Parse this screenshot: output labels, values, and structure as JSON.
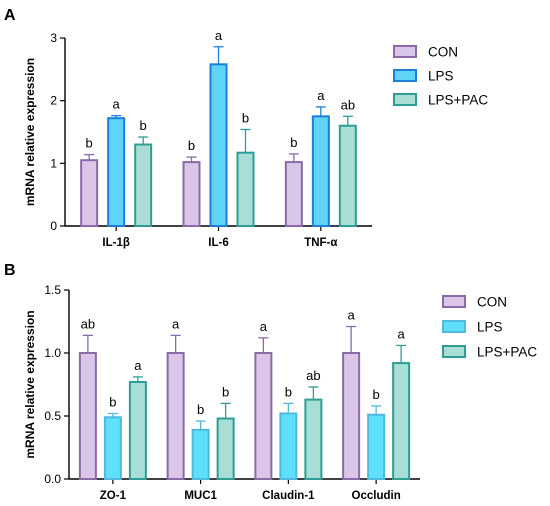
{
  "figure": {
    "panel_labels": [
      "A",
      "B"
    ]
  },
  "chart_data": [
    {
      "type": "bar",
      "panel": "A",
      "ylabel": "mRNA relative  expression",
      "ylim": [
        0,
        3
      ],
      "yticks": [
        0,
        1,
        2,
        3
      ],
      "categories": [
        "IL-1β",
        "IL-6",
        "TNF-α"
      ],
      "series": [
        {
          "name": "CON",
          "values": [
            1.05,
            1.02,
            1.02
          ],
          "errors": [
            0.09,
            0.08,
            0.13
          ],
          "labels": [
            "b",
            "b",
            "b"
          ]
        },
        {
          "name": "LPS",
          "values": [
            1.72,
            2.58,
            1.75
          ],
          "errors": [
            0.04,
            0.28,
            0.15
          ],
          "labels": [
            "a",
            "a",
            "a"
          ]
        },
        {
          "name": "LPS+PAC",
          "values": [
            1.3,
            1.17,
            1.6
          ],
          "errors": [
            0.12,
            0.37,
            0.15
          ],
          "labels": [
            "b",
            "b",
            "ab"
          ]
        }
      ],
      "colors": {
        "CON": {
          "fill": "#d9c6e8",
          "stroke": "#8b6aa8"
        },
        "LPS": {
          "fill": "#5fd4f5",
          "stroke": "#1d7fd9"
        },
        "LPS+PAC": {
          "fill": "#a8ded6",
          "stroke": "#2e9e94"
        }
      },
      "legend_position": "right"
    },
    {
      "type": "bar",
      "panel": "B",
      "ylabel": "mRNA relative expression",
      "ylim": [
        0,
        1.5
      ],
      "yticks": [
        "0.0",
        "0.5",
        "1.0",
        "1.5"
      ],
      "categories": [
        "ZO-1",
        "MUC1",
        "Claudin-1",
        "Occludin"
      ],
      "series": [
        {
          "name": "CON",
          "values": [
            1.0,
            1.0,
            1.0,
            1.0
          ],
          "errors": [
            0.14,
            0.14,
            0.12,
            0.21
          ],
          "labels": [
            "ab",
            "a",
            "a",
            "a"
          ]
        },
        {
          "name": "LPS",
          "values": [
            0.49,
            0.39,
            0.52,
            0.51
          ],
          "errors": [
            0.03,
            0.07,
            0.08,
            0.07
          ],
          "labels": [
            "b",
            "b",
            "b",
            "b"
          ]
        },
        {
          "name": "LPS+PAC",
          "values": [
            0.77,
            0.48,
            0.63,
            0.92
          ],
          "errors": [
            0.04,
            0.12,
            0.1,
            0.14
          ],
          "labels": [
            "a",
            "b",
            "ab",
            "a"
          ]
        }
      ],
      "colors": {
        "CON": {
          "fill": "#d9c6e8",
          "stroke": "#8b6aa8"
        },
        "LPS": {
          "fill": "#5fe0fa",
          "stroke": "#4fb9e0"
        },
        "LPS+PAC": {
          "fill": "#a8ded6",
          "stroke": "#2e9e94"
        }
      },
      "legend_position": "right"
    }
  ]
}
